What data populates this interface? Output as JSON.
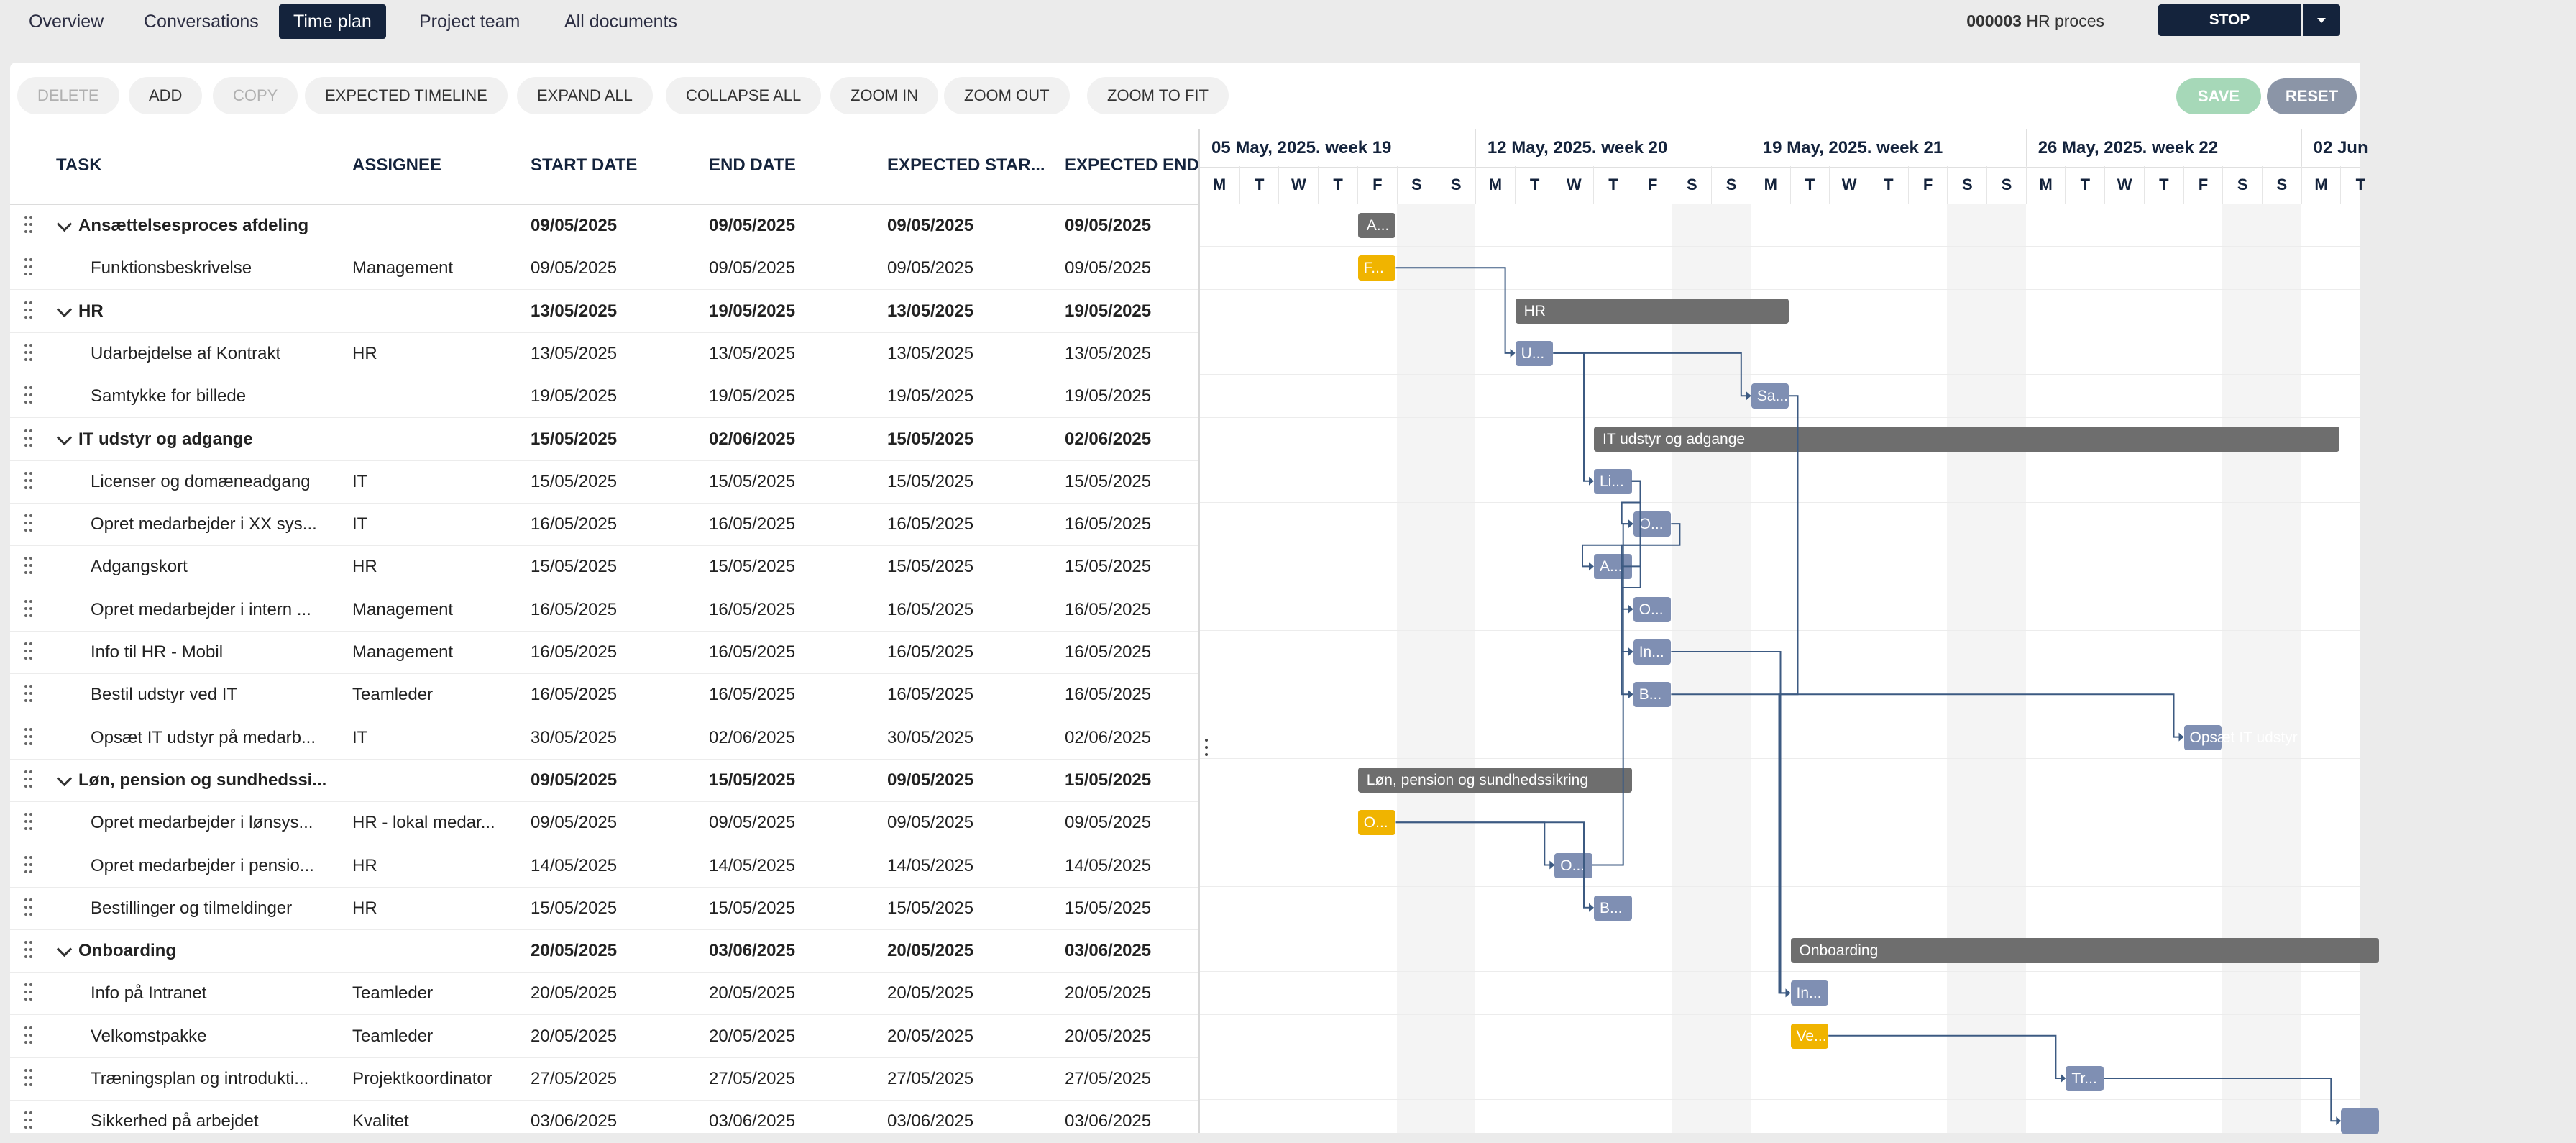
{
  "tabs": [
    "Overview",
    "Conversations",
    "Time plan",
    "Project team",
    "All documents"
  ],
  "process": {
    "number": "000003",
    "name": "HR proces"
  },
  "stop_label": "STOP",
  "toolbar": {
    "delete": "DELETE",
    "add": "ADD",
    "copy": "COPY",
    "expected_timeline": "EXPECTED TIMELINE",
    "expand_all": "EXPAND ALL",
    "collapse_all": "COLLAPSE ALL",
    "zoom_in": "ZOOM IN",
    "zoom_out": "ZOOM OUT",
    "zoom_to_fit": "ZOOM TO FIT",
    "save": "SAVE",
    "reset": "RESET"
  },
  "columns": {
    "task": "TASK",
    "assignee": "ASSIGNEE",
    "start": "START DATE",
    "end": "END DATE",
    "exp_start": "EXPECTED STAR...",
    "exp_end": "EXPECTED END"
  },
  "weeks": [
    "05 May, 2025. week 19",
    "12 May, 2025. week 20",
    "19 May, 2025. week 21",
    "26 May, 2025. week 22",
    "02 Jun"
  ],
  "day_letters": [
    "M",
    "T",
    "W",
    "T",
    "F",
    "S",
    "S"
  ],
  "rows": [
    {
      "task": "Ansættelsesproces afdeling",
      "assignee": "",
      "start": "09/05/2025",
      "end": "09/05/2025",
      "exp_start": "09/05/2025",
      "exp_end": "09/05/2025",
      "parent": true,
      "bar": "A..."
    },
    {
      "task": "Funktionsbeskrivelse",
      "assignee": "Management",
      "start": "09/05/2025",
      "end": "09/05/2025",
      "exp_start": "09/05/2025",
      "exp_end": "09/05/2025",
      "parent": false,
      "bar": "F..."
    },
    {
      "task": "HR",
      "assignee": "",
      "start": "13/05/2025",
      "end": "19/05/2025",
      "exp_start": "13/05/2025",
      "exp_end": "19/05/2025",
      "parent": true,
      "bar": "HR"
    },
    {
      "task": "Udarbejdelse af Kontrakt",
      "assignee": "HR",
      "start": "13/05/2025",
      "end": "13/05/2025",
      "exp_start": "13/05/2025",
      "exp_end": "13/05/2025",
      "parent": false,
      "bar": "U..."
    },
    {
      "task": "Samtykke for billede",
      "assignee": "",
      "start": "19/05/2025",
      "end": "19/05/2025",
      "exp_start": "19/05/2025",
      "exp_end": "19/05/2025",
      "parent": false,
      "bar": "Sa..."
    },
    {
      "task": "IT udstyr og adgange",
      "assignee": "",
      "start": "15/05/2025",
      "end": "02/06/2025",
      "exp_start": "15/05/2025",
      "exp_end": "02/06/2025",
      "parent": true,
      "bar": "IT udstyr og adgange"
    },
    {
      "task": "Licenser og domæneadgang",
      "assignee": "IT",
      "start": "15/05/2025",
      "end": "15/05/2025",
      "exp_start": "15/05/2025",
      "exp_end": "15/05/2025",
      "parent": false,
      "bar": "Li..."
    },
    {
      "task": "Opret medarbejder i XX sys...",
      "assignee": "IT",
      "start": "16/05/2025",
      "end": "16/05/2025",
      "exp_start": "16/05/2025",
      "exp_end": "16/05/2025",
      "parent": false,
      "bar": "O..."
    },
    {
      "task": "Adgangskort",
      "assignee": "HR",
      "start": "15/05/2025",
      "end": "15/05/2025",
      "exp_start": "15/05/2025",
      "exp_end": "15/05/2025",
      "parent": false,
      "bar": "A..."
    },
    {
      "task": "Opret medarbejder i intern ...",
      "assignee": "Management",
      "start": "16/05/2025",
      "end": "16/05/2025",
      "exp_start": "16/05/2025",
      "exp_end": "16/05/2025",
      "parent": false,
      "bar": "O..."
    },
    {
      "task": "Info til HR - Mobil",
      "assignee": "Management",
      "start": "16/05/2025",
      "end": "16/05/2025",
      "exp_start": "16/05/2025",
      "exp_end": "16/05/2025",
      "parent": false,
      "bar": "In..."
    },
    {
      "task": "Bestil udstyr ved IT",
      "assignee": "Teamleder",
      "start": "16/05/2025",
      "end": "16/05/2025",
      "exp_start": "16/05/2025",
      "exp_end": "16/05/2025",
      "parent": false,
      "bar": "B..."
    },
    {
      "task": "Opsæt IT udstyr på medarb...",
      "assignee": "IT",
      "start": "30/05/2025",
      "end": "02/06/2025",
      "exp_start": "30/05/2025",
      "exp_end": "02/06/2025",
      "parent": false,
      "bar": "Opsæt IT udstyr på..."
    },
    {
      "task": "Løn, pension og sundhedssi...",
      "assignee": "",
      "start": "09/05/2025",
      "end": "15/05/2025",
      "exp_start": "09/05/2025",
      "exp_end": "15/05/2025",
      "parent": true,
      "bar": "Løn, pension og sundhedssikring"
    },
    {
      "task": "Opret medarbejder i lønsys...",
      "assignee": "HR - lokal medar...",
      "start": "09/05/2025",
      "end": "09/05/2025",
      "exp_start": "09/05/2025",
      "exp_end": "09/05/2025",
      "parent": false,
      "bar": "O..."
    },
    {
      "task": "Opret medarbejder i pensio...",
      "assignee": "HR",
      "start": "14/05/2025",
      "end": "14/05/2025",
      "exp_start": "14/05/2025",
      "exp_end": "14/05/2025",
      "parent": false,
      "bar": "O..."
    },
    {
      "task": "Bestillinger og tilmeldinger",
      "assignee": "HR",
      "start": "15/05/2025",
      "end": "15/05/2025",
      "exp_start": "15/05/2025",
      "exp_end": "15/05/2025",
      "parent": false,
      "bar": "B..."
    },
    {
      "task": "Onboarding",
      "assignee": "",
      "start": "20/05/2025",
      "end": "03/06/2025",
      "exp_start": "20/05/2025",
      "exp_end": "03/06/2025",
      "parent": true,
      "bar": "Onboarding"
    },
    {
      "task": "Info på Intranet",
      "assignee": "Teamleder",
      "start": "20/05/2025",
      "end": "20/05/2025",
      "exp_start": "20/05/2025",
      "exp_end": "20/05/2025",
      "parent": false,
      "bar": "In..."
    },
    {
      "task": "Velkomstpakke",
      "assignee": "Teamleder",
      "start": "20/05/2025",
      "end": "20/05/2025",
      "exp_start": "20/05/2025",
      "exp_end": "20/05/2025",
      "parent": false,
      "bar": "Ve..."
    },
    {
      "task": "Træningsplan og introdukti...",
      "assignee": "Projektkoordinator",
      "start": "27/05/2025",
      "end": "27/05/2025",
      "exp_start": "27/05/2025",
      "exp_end": "27/05/2025",
      "parent": false,
      "bar": "Tr..."
    },
    {
      "task": "Sikkerhed på arbejdet",
      "assignee": "Kvalitet",
      "start": "03/06/2025",
      "end": "03/06/2025",
      "exp_start": "03/06/2025",
      "exp_end": "03/06/2025",
      "parent": false,
      "bar": ""
    }
  ],
  "colors": {
    "nav_active": "#14233c",
    "summary_bar": "#6e6e6e",
    "task_bar": "#7f8fb3",
    "milestone_bar": "#f0b400",
    "link_line": "#3c5a82"
  }
}
